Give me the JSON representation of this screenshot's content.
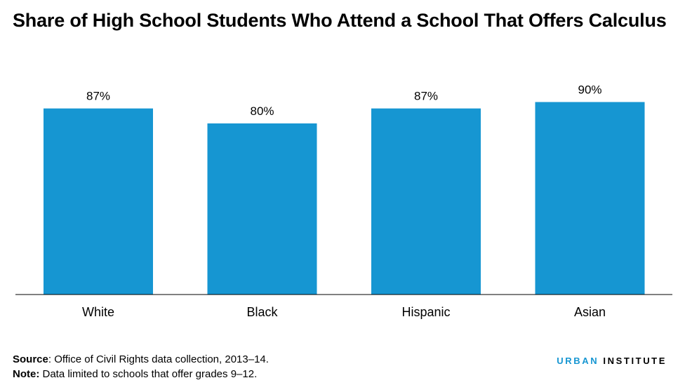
{
  "title": "Share of High School Students Who Attend a School That Offers Calculus",
  "chart_data": {
    "type": "bar",
    "categories": [
      "White",
      "Black",
      "Hispanic",
      "Asian"
    ],
    "values": [
      87,
      80,
      87,
      90
    ],
    "data_labels": [
      "87%",
      "80%",
      "87%",
      "90%"
    ],
    "unit": "%",
    "ylim": [
      0,
      100
    ],
    "grid": false,
    "legend": "none",
    "bar_color": "#1696d2"
  },
  "footer": {
    "source_label": "Source",
    "source_text": ": Office of Civil Rights data collection, 2013–14.",
    "note_label": "Note:",
    "note_text": " Data limited to schools that offer grades 9–12."
  },
  "logo": {
    "accent_text": "URBAN",
    "text": " INSTITUTE",
    "accent_color": "#1696d2"
  }
}
